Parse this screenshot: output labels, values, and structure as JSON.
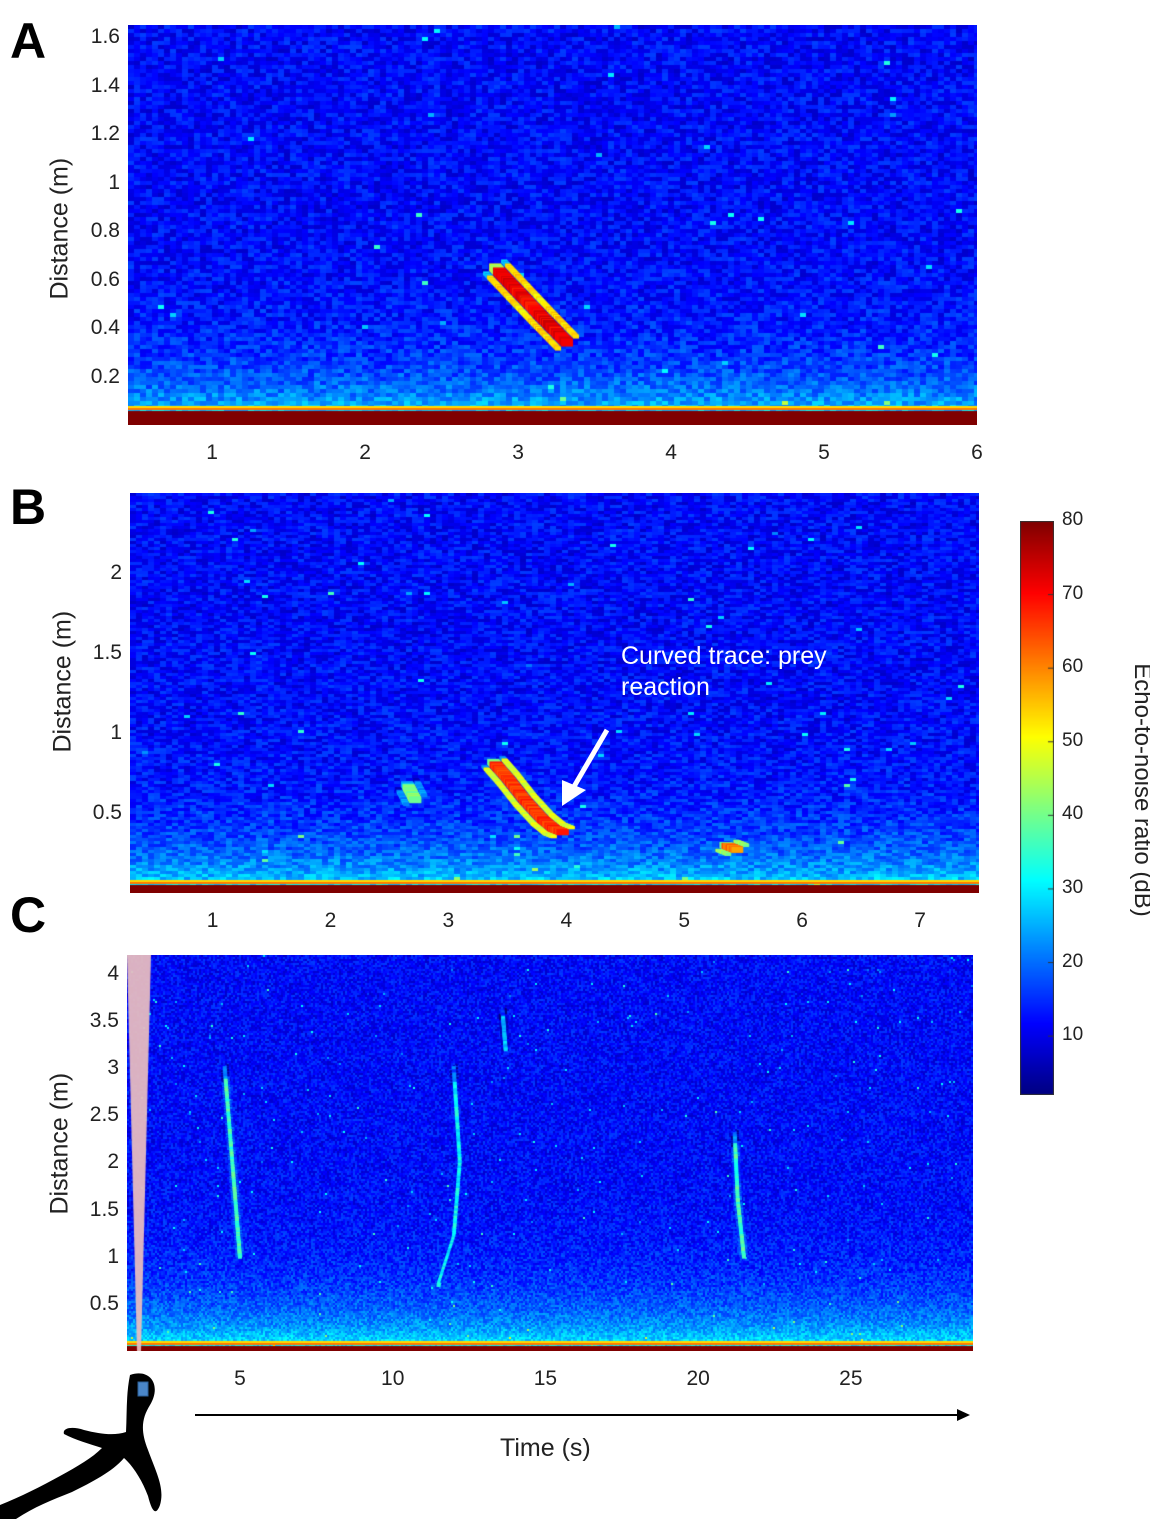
{
  "panels": {
    "a": {
      "letter": "A"
    },
    "b": {
      "letter": "B"
    },
    "c": {
      "letter": "C"
    }
  },
  "annotation": {
    "line1": "Curved trace: prey",
    "line2": "reaction"
  },
  "xlabel": "Time (s)",
  "colorbar": {
    "label": "Echo-to-noise ratio (dB)",
    "ticks": [
      "80",
      "70",
      "60",
      "50",
      "40",
      "30",
      "20",
      "10"
    ],
    "tick_values": [
      80,
      70,
      60,
      50,
      40,
      30,
      20,
      10
    ],
    "range": [
      2,
      80
    ],
    "colormap": "jet"
  },
  "colors": {
    "background_noise": "#1a3fd6",
    "surface_band": "#7f0000",
    "trace_hot": "#ff3a00",
    "silhouette_shade": "#d99a9a",
    "tag_marker": "#4a86c8"
  },
  "chart_data": [
    {
      "type": "heatmap",
      "panel": "A",
      "ylabel": "Distance (m)",
      "xlabel": "",
      "xlim": [
        0.45,
        6
      ],
      "ylim": [
        0,
        1.65
      ],
      "xticks": [
        "1",
        "2",
        "3",
        "4",
        "5",
        "6"
      ],
      "xtick_values": [
        1,
        2,
        3,
        4,
        5,
        6
      ],
      "yticks": [
        "1.6",
        "1.4",
        "1.2",
        "1",
        "0.8",
        "0.6",
        "0.4",
        "0.2"
      ],
      "ytick_values": [
        1.6,
        1.4,
        1.2,
        1.0,
        0.8,
        0.6,
        0.4,
        0.2
      ],
      "traces": [
        {
          "points": [
            [
              2.85,
              0.65
            ],
            [
              3.0,
              0.55
            ],
            [
              3.15,
              0.45
            ],
            [
              3.32,
              0.34
            ]
          ],
          "peak_db": 75
        }
      ]
    },
    {
      "type": "heatmap",
      "panel": "B",
      "ylabel": "Distance (m)",
      "xlabel": "",
      "xlim": [
        0.3,
        7.5
      ],
      "ylim": [
        0,
        2.5
      ],
      "xticks": [
        "1",
        "2",
        "3",
        "4",
        "5",
        "6",
        "7"
      ],
      "xtick_values": [
        1,
        2,
        3,
        4,
        5,
        6,
        7
      ],
      "yticks": [
        "2",
        "1.5",
        "1",
        "0.5"
      ],
      "ytick_values": [
        2,
        1.5,
        1,
        0.5
      ],
      "traces": [
        {
          "points": [
            [
              3.38,
              0.82
            ],
            [
              3.5,
              0.72
            ],
            [
              3.65,
              0.58
            ],
            [
              3.8,
              0.46
            ],
            [
              3.9,
              0.4
            ],
            [
              3.97,
              0.38
            ]
          ],
          "peak_db": 70
        },
        {
          "points": [
            [
              5.35,
              0.3
            ],
            [
              5.45,
              0.27
            ]
          ],
          "peak_db": 65
        },
        {
          "points": [
            [
              2.65,
              0.68
            ],
            [
              2.72,
              0.58
            ]
          ],
          "peak_db": 45
        }
      ]
    },
    {
      "type": "heatmap",
      "panel": "C",
      "ylabel": "Distance (m)",
      "xlabel": "Time (s)",
      "xlim": [
        1.3,
        29
      ],
      "ylim": [
        0,
        4.2
      ],
      "xticks": [
        "5",
        "10",
        "15",
        "20",
        "25"
      ],
      "xtick_values": [
        5,
        10,
        15,
        20,
        25
      ],
      "yticks": [
        "4",
        "3.5",
        "3",
        "2.5",
        "2",
        "1.5",
        "1",
        "0.5"
      ],
      "ytick_values": [
        4,
        3.5,
        3,
        2.5,
        2,
        1.5,
        1,
        0.5
      ],
      "traces": [
        {
          "points": [
            [
              4.5,
              3.0
            ],
            [
              4.7,
              2.2
            ],
            [
              4.9,
              1.4
            ],
            [
              5.0,
              1.0
            ]
          ],
          "peak_db": 40
        },
        {
          "points": [
            [
              12.0,
              3.0
            ],
            [
              12.2,
              2.0
            ],
            [
              12.0,
              1.2
            ],
            [
              11.5,
              0.7
            ]
          ],
          "peak_db": 35
        },
        {
          "points": [
            [
              13.6,
              3.6
            ],
            [
              13.7,
              3.2
            ]
          ],
          "peak_db": 30
        },
        {
          "points": [
            [
              21.2,
              2.3
            ],
            [
              21.3,
              1.6
            ],
            [
              21.5,
              1.0
            ]
          ],
          "peak_db": 40
        }
      ]
    }
  ]
}
